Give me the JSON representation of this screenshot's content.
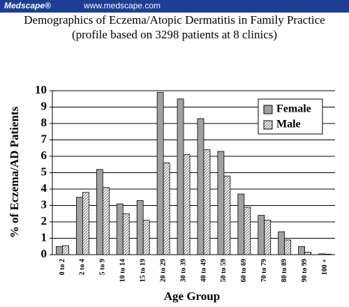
{
  "header": {
    "brand": "Medscape®",
    "url": "www.medscape.com"
  },
  "chart_data": {
    "type": "bar",
    "title": "Demographics of Eczema/Atopic Dermatitis in Family Practice",
    "subtitle": "(profile based on 3298 patients at 8 clinics)",
    "x_label": "Age Group",
    "y_label": "% of Eczema/AD Patients",
    "categories": [
      "0 to 2",
      "2 to 4",
      "5 to 9",
      "10 to 14",
      "15 to 19",
      "20 to 29",
      "30 to 39",
      "40 to 49",
      "50 to 59",
      "60 to 69",
      "70 to 79",
      "80 to 89",
      "90 to 99",
      "100 +"
    ],
    "series": [
      {
        "name": "Female",
        "color": "#a0a0a0",
        "values": [
          0.5,
          3.5,
          5.2,
          3.1,
          3.3,
          9.9,
          9.5,
          8.3,
          6.3,
          3.7,
          2.4,
          1.4,
          0.5,
          0.05
        ]
      },
      {
        "name": "Male",
        "color": "#707070",
        "hatch": true,
        "values": [
          0.55,
          3.8,
          4.1,
          2.5,
          2.1,
          5.6,
          6.1,
          6.4,
          4.8,
          2.9,
          2.1,
          0.9,
          0.15,
          0.03
        ]
      }
    ],
    "ylim": [
      0,
      10
    ],
    "yticks": [
      0,
      1,
      2,
      3,
      4,
      5,
      6,
      7,
      8,
      9,
      10
    ],
    "grid": true,
    "legend": "upper-right"
  }
}
